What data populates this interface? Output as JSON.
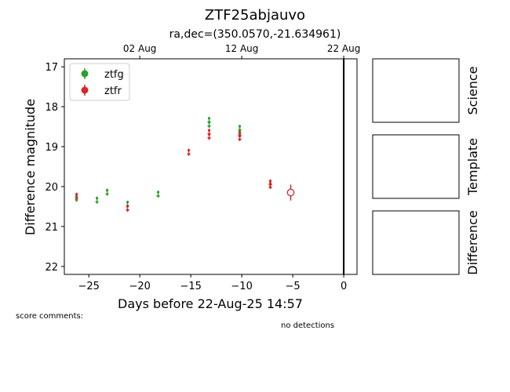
{
  "chart_data": {
    "type": "scatter",
    "title": "ZTF25abjauvo",
    "subtitle": "ra,dec=(350.0570,-21.634961)",
    "xlabel": "Days before 22-Aug-25 14:57",
    "ylabel": "Difference magnitude",
    "xlim": [
      -27.4,
      1.3
    ],
    "ylim": [
      22.2,
      16.8
    ],
    "y_inverted": true,
    "x_ticks": [
      -25,
      -20,
      -15,
      -10,
      -5,
      0
    ],
    "x_tick_labels": [
      "−25",
      "−20",
      "−15",
      "−10",
      "−5",
      "0"
    ],
    "y_ticks": [
      17,
      18,
      19,
      20,
      21,
      22
    ],
    "y_tick_labels": [
      "17",
      "18",
      "19",
      "20",
      "21",
      "22"
    ],
    "top_axis": {
      "ticks": [
        -20,
        -10,
        0
      ],
      "labels": [
        "02 Aug",
        "12 Aug",
        "22 Aug"
      ]
    },
    "vertical_line_x": 0,
    "legend_position": "top-left",
    "series": [
      {
        "name": "ztfg",
        "color": "#2ca02c",
        "marker": "filled-circle",
        "upper_limits": [
          {
            "x": -26.2,
            "y": 20.3
          },
          {
            "x": -24.2,
            "y": 20.35
          },
          {
            "x": -23.2,
            "y": 20.15
          },
          {
            "x": -21.2,
            "y": 20.45
          },
          {
            "x": -18.2,
            "y": 20.2
          },
          {
            "x": -13.2,
            "y": 18.35
          },
          {
            "x": -13.2,
            "y": 18.45
          },
          {
            "x": -10.2,
            "y": 18.55
          },
          {
            "x": -10.2,
            "y": 18.65
          }
        ]
      },
      {
        "name": "ztfr",
        "color": "#d62728",
        "marker": "filled-circle",
        "upper_limits": [
          {
            "x": -26.2,
            "y": 20.25
          },
          {
            "x": -21.2,
            "y": 20.55
          },
          {
            "x": -15.2,
            "y": 19.15
          },
          {
            "x": -13.2,
            "y": 18.65
          },
          {
            "x": -13.2,
            "y": 18.75
          },
          {
            "x": -10.2,
            "y": 18.7
          },
          {
            "x": -10.2,
            "y": 18.78
          },
          {
            "x": -7.2,
            "y": 19.92
          },
          {
            "x": -7.2,
            "y": 19.98
          }
        ],
        "detections": [
          {
            "x": -5.2,
            "y": 20.15,
            "err": 0.2,
            "hollow": true
          }
        ]
      }
    ]
  },
  "stamps": [
    {
      "label": "Science"
    },
    {
      "label": "Template"
    },
    {
      "label": "Difference"
    }
  ],
  "notes": {
    "score_comments": "score comments:",
    "no_detections": "no detections"
  }
}
